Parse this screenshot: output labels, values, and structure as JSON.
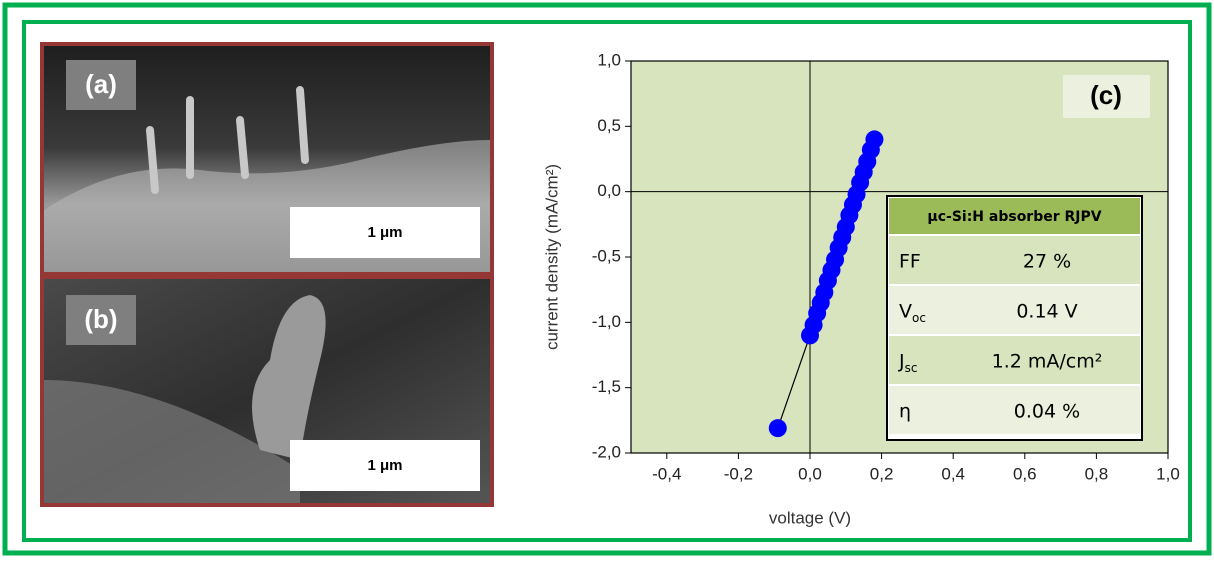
{
  "panels": [
    {
      "label": "(a)",
      "scale_bar": "1 μm"
    },
    {
      "label": "(b)",
      "scale_bar": "1 μm"
    }
  ],
  "chart_data": {
    "type": "scatter",
    "label": "(c)",
    "x_label": "voltage (V)",
    "y_label": "current density (mA/cm²)",
    "xlim": [
      -0.5,
      1.0
    ],
    "ylim": [
      -2.0,
      1.0
    ],
    "xticks": [
      {
        "value": -0.4,
        "label": "-0,4"
      },
      {
        "value": -0.2,
        "label": "-0,2"
      },
      {
        "value": 0.0,
        "label": "0,0"
      },
      {
        "value": 0.2,
        "label": "0,2"
      },
      {
        "value": 0.4,
        "label": "0,4"
      },
      {
        "value": 0.6,
        "label": "0,6"
      },
      {
        "value": 0.8,
        "label": "0,8"
      },
      {
        "value": 1.0,
        "label": "1,0"
      }
    ],
    "yticks": [
      {
        "value": -2.0,
        "label": "-2,0"
      },
      {
        "value": -1.5,
        "label": "-1,5"
      },
      {
        "value": -1.0,
        "label": "-1,0"
      },
      {
        "value": -0.5,
        "label": "-0,5"
      },
      {
        "value": 0.0,
        "label": "0,0"
      },
      {
        "value": 0.5,
        "label": "0,5"
      },
      {
        "value": 1.0,
        "label": "1,0"
      }
    ],
    "background": "#d7e4bd",
    "series": [
      {
        "color": "#0000ff",
        "x": [
          -0.09,
          0.0,
          0.01,
          0.02,
          0.03,
          0.04,
          0.05,
          0.06,
          0.07,
          0.08,
          0.09,
          0.1,
          0.11,
          0.12,
          0.13,
          0.14,
          0.15,
          0.16,
          0.17,
          0.18
        ],
        "values": [
          -1.81,
          -1.1,
          -1.02,
          -0.93,
          -0.85,
          -0.77,
          -0.68,
          -0.6,
          -0.52,
          -0.43,
          -0.35,
          -0.27,
          -0.18,
          -0.1,
          -0.02,
          0.07,
          0.15,
          0.23,
          0.32,
          0.4
        ]
      }
    ]
  },
  "table": {
    "title": "μc-Si:H absorber RJPV",
    "rows": [
      [
        {
          "symbol": "FF"
        },
        "27 %"
      ],
      [
        {
          "symbol": "V",
          "subscript": "oc"
        },
        "0.14 V"
      ],
      [
        {
          "symbol": "J",
          "subscript": "sc"
        },
        "1.2 mA/cm²"
      ],
      [
        {
          "symbol": "η"
        },
        "0.04 %"
      ]
    ]
  }
}
